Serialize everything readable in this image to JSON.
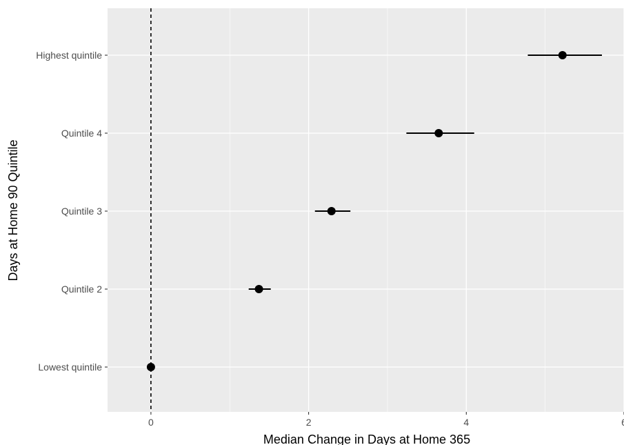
{
  "chart_data": {
    "type": "scatter",
    "variant": "point-range",
    "xlabel": "Median Change in Days at Home 365",
    "ylabel": "Days at Home 90 Quintile",
    "xlim": [
      -0.55,
      6.0
    ],
    "x_ticks": [
      0,
      2,
      4,
      6
    ],
    "x_tick_labels": [
      "0",
      "2",
      "4",
      "6"
    ],
    "grid": true,
    "legend": "none",
    "reference_line": {
      "x": 0,
      "style": "dashed"
    },
    "categories": [
      "Highest quintile",
      "Quintile 4",
      "Quintile 3",
      "Quintile 2",
      "Lowest quintile"
    ],
    "estimates": [
      5.22,
      3.65,
      2.29,
      1.37,
      0.0
    ],
    "ci_low": [
      4.78,
      3.24,
      2.08,
      1.24,
      0.0
    ],
    "ci_high": [
      5.72,
      4.1,
      2.53,
      1.52,
      0.0
    ],
    "colors": {
      "panel": "#ebebeb",
      "grid": "#ffffff",
      "point": "#000000",
      "text": "#4d4d4d"
    }
  }
}
